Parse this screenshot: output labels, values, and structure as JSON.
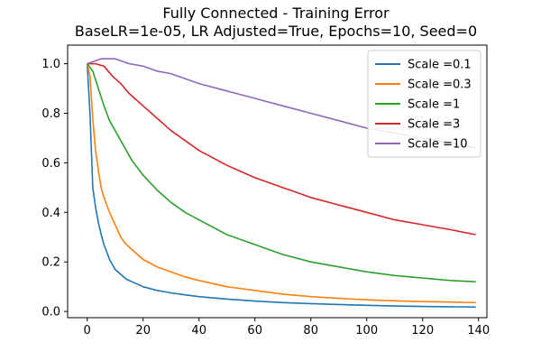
{
  "chart_data": {
    "type": "line",
    "title_line1": "Fully Connected - Training Error",
    "title_line2": "BaseLR=1e-05, LR Adjusted=True, Epochs=10, Seed=0",
    "xlabel": "",
    "ylabel": "",
    "xlim": [
      -7,
      143
    ],
    "ylim": [
      -0.025,
      1.075
    ],
    "x_ticks": [
      0,
      20,
      40,
      60,
      80,
      100,
      120,
      140
    ],
    "y_ticks": [
      0.0,
      0.2,
      0.4,
      0.6,
      0.8,
      1.0
    ],
    "y_tick_labels": [
      "0.0",
      "0.2",
      "0.4",
      "0.6",
      "0.8",
      "1.0"
    ],
    "grid": false,
    "legend_position": "top-right",
    "series": [
      {
        "name": "Scale =0.1",
        "color": "#1f77b4",
        "x": [
          0,
          1,
          2,
          3,
          4,
          5,
          6,
          7,
          8,
          10,
          12,
          14,
          16,
          20,
          25,
          30,
          35,
          40,
          50,
          60,
          70,
          80,
          90,
          100,
          110,
          120,
          130,
          139
        ],
        "y": [
          1.0,
          0.8,
          0.5,
          0.42,
          0.36,
          0.31,
          0.27,
          0.24,
          0.21,
          0.17,
          0.15,
          0.13,
          0.12,
          0.1,
          0.085,
          0.075,
          0.067,
          0.06,
          0.05,
          0.042,
          0.036,
          0.032,
          0.028,
          0.025,
          0.022,
          0.02,
          0.019,
          0.018
        ]
      },
      {
        "name": "Scale =0.3",
        "color": "#ff7f0e",
        "x": [
          0,
          1,
          2,
          3,
          4,
          5,
          6,
          7,
          8,
          10,
          12,
          14,
          16,
          20,
          25,
          30,
          35,
          40,
          50,
          60,
          70,
          80,
          90,
          100,
          110,
          120,
          130,
          139
        ],
        "y": [
          1.0,
          0.95,
          0.78,
          0.65,
          0.57,
          0.5,
          0.46,
          0.43,
          0.4,
          0.35,
          0.3,
          0.27,
          0.25,
          0.21,
          0.18,
          0.16,
          0.14,
          0.125,
          0.1,
          0.085,
          0.07,
          0.06,
          0.053,
          0.047,
          0.043,
          0.04,
          0.038,
          0.036
        ]
      },
      {
        "name": "Scale =1",
        "color": "#2ca02c",
        "x": [
          0,
          2,
          4,
          6,
          8,
          10,
          12,
          14,
          16,
          18,
          20,
          25,
          30,
          35,
          40,
          50,
          60,
          70,
          80,
          90,
          100,
          110,
          120,
          130,
          139
        ],
        "y": [
          1.0,
          0.97,
          0.9,
          0.83,
          0.77,
          0.73,
          0.69,
          0.65,
          0.61,
          0.58,
          0.55,
          0.49,
          0.44,
          0.4,
          0.37,
          0.31,
          0.27,
          0.23,
          0.2,
          0.18,
          0.16,
          0.145,
          0.135,
          0.125,
          0.12
        ]
      },
      {
        "name": "Scale =3",
        "color": "#d62728",
        "x": [
          0,
          3,
          6,
          9,
          12,
          15,
          20,
          25,
          30,
          35,
          40,
          50,
          60,
          70,
          80,
          90,
          100,
          110,
          120,
          130,
          139
        ],
        "y": [
          1.0,
          1.0,
          0.99,
          0.95,
          0.92,
          0.88,
          0.83,
          0.78,
          0.73,
          0.69,
          0.65,
          0.59,
          0.54,
          0.5,
          0.46,
          0.43,
          0.4,
          0.37,
          0.35,
          0.33,
          0.31
        ]
      },
      {
        "name": "Scale =10",
        "color": "#9467bd",
        "x": [
          0,
          5,
          10,
          15,
          20,
          25,
          30,
          40,
          50,
          60,
          70,
          80,
          90,
          100,
          110,
          120,
          130,
          139
        ],
        "y": [
          1.0,
          1.02,
          1.02,
          1.0,
          0.99,
          0.97,
          0.96,
          0.92,
          0.89,
          0.86,
          0.83,
          0.8,
          0.77,
          0.74,
          0.72,
          0.7,
          0.68,
          0.66
        ]
      }
    ]
  }
}
